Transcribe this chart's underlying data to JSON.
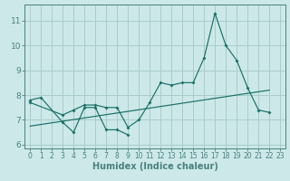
{
  "xlabel": "Humidex (Indice chaleur)",
  "bg_color": "#cce8e8",
  "grid_color": "#aacccc",
  "line_color": "#1a7068",
  "spine_color": "#4a8080",
  "xlim": [
    -0.5,
    23.5
  ],
  "ylim": [
    5.85,
    11.65
  ],
  "yticks": [
    6,
    7,
    8,
    9,
    10,
    11
  ],
  "xticks": [
    0,
    1,
    2,
    3,
    4,
    5,
    6,
    7,
    8,
    9,
    10,
    11,
    12,
    13,
    14,
    15,
    16,
    17,
    18,
    19,
    20,
    21,
    22,
    23
  ],
  "series1_x": [
    0,
    1,
    3,
    4,
    5,
    6,
    7,
    8,
    9
  ],
  "series1_y": [
    7.8,
    7.9,
    6.9,
    6.5,
    7.5,
    7.5,
    6.6,
    6.6,
    6.4
  ],
  "series2_x": [
    0,
    3,
    4,
    5,
    6,
    7,
    8,
    9,
    10,
    11,
    12,
    13,
    14,
    15,
    16,
    17,
    18,
    19,
    20,
    21,
    22
  ],
  "series2_y": [
    7.7,
    7.2,
    7.4,
    7.6,
    7.6,
    7.5,
    7.5,
    6.7,
    7.0,
    7.7,
    8.5,
    8.4,
    8.5,
    8.5,
    9.5,
    11.3,
    10.0,
    9.4,
    8.3,
    7.4,
    7.3
  ],
  "trend_x": [
    0,
    22
  ],
  "trend_y": [
    6.75,
    8.2
  ],
  "xlabel_fontsize": 7,
  "tick_fontsize_x": 5.5,
  "tick_fontsize_y": 6.5
}
